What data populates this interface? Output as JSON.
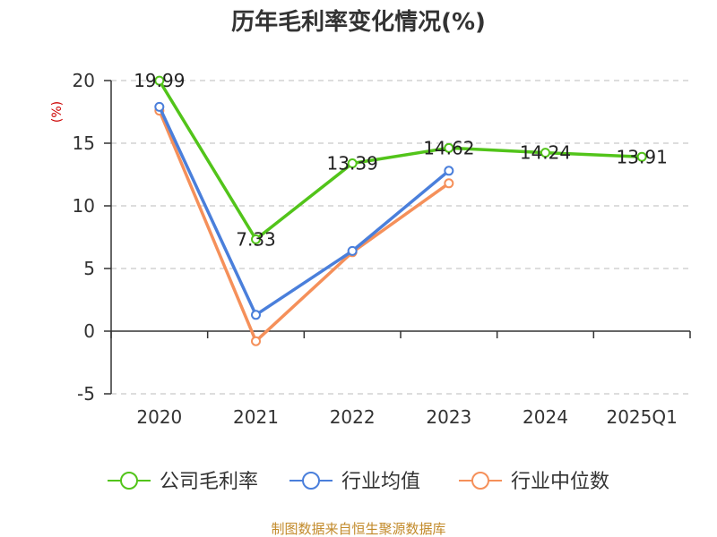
{
  "chart_data": {
    "type": "line",
    "title": "历年毛利率变化情况(%)",
    "ylabel": "(%)",
    "xlabel": "",
    "categories": [
      "2020",
      "2021",
      "2022",
      "2023",
      "2024",
      "2025Q1"
    ],
    "ylim": [
      -5,
      20
    ],
    "yticks": [
      20,
      15,
      10,
      5,
      0,
      -5
    ],
    "grid": true,
    "legend_position": "bottom",
    "series": [
      {
        "name": "公司毛利率",
        "color": "#52c41a",
        "values": [
          19.99,
          7.33,
          13.39,
          14.62,
          14.24,
          13.91
        ],
        "labels": [
          "19.99",
          "7.33",
          "13.39",
          "14.62",
          "14.24",
          "13.91"
        ]
      },
      {
        "name": "行业均值",
        "color": "#4a7fdb",
        "values": [
          17.9,
          1.3,
          6.4,
          12.8,
          null,
          null
        ]
      },
      {
        "name": "行业中位数",
        "color": "#f5905a",
        "values": [
          17.6,
          -0.8,
          6.3,
          11.8,
          null,
          null
        ]
      }
    ]
  },
  "source": "制图数据来自恒生聚源数据库"
}
